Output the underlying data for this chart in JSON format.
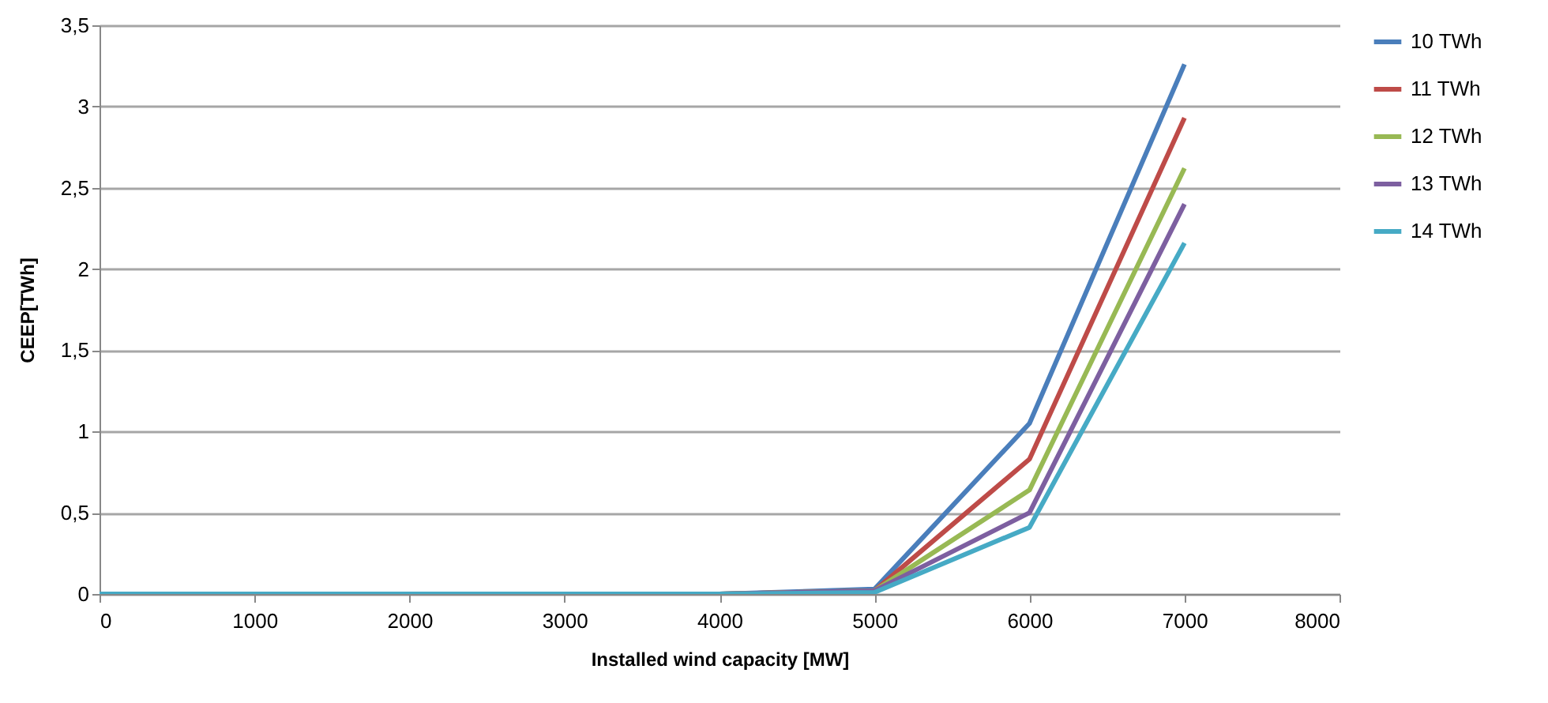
{
  "chart_data": {
    "type": "line",
    "xlabel": "Installed wind capacity  [MW]",
    "ylabel": "CEEP[TWh]",
    "x": [
      0,
      1000,
      2000,
      3000,
      4000,
      5000,
      6000,
      7000
    ],
    "series": [
      {
        "name": "10 TWh",
        "color": "#4a7ebb",
        "values": [
          null,
          null,
          null,
          null,
          0,
          0.03,
          1.05,
          3.26
        ]
      },
      {
        "name": "11 TWh",
        "color": "#be4b48",
        "values": [
          null,
          null,
          null,
          null,
          0,
          0.02,
          0.83,
          2.93
        ]
      },
      {
        "name": "12 TWh",
        "color": "#98b954",
        "values": [
          null,
          null,
          null,
          null,
          0,
          0.02,
          0.64,
          2.62
        ]
      },
      {
        "name": "13 TWh",
        "color": "#7d5fa0",
        "values": [
          null,
          null,
          null,
          null,
          0,
          0.02,
          0.5,
          2.4
        ]
      },
      {
        "name": "14 TWh",
        "color": "#46aac5",
        "values": [
          0,
          0,
          0,
          0,
          0,
          0.01,
          0.41,
          2.16
        ]
      }
    ],
    "xlim": [
      0,
      8000
    ],
    "xticks": [
      0,
      1000,
      2000,
      3000,
      4000,
      5000,
      6000,
      7000,
      8000
    ],
    "ylim": [
      0,
      3.5
    ],
    "yticks": [
      0,
      {
        "value": 0.5,
        "label": "0,5"
      },
      1,
      {
        "value": 1.5,
        "label": "1,5"
      },
      2,
      {
        "value": 2.5,
        "label": "2,5"
      },
      3,
      {
        "value": 3.5,
        "label": "3,5"
      }
    ],
    "grid": "y",
    "legend": "right",
    "marker": "none",
    "line_style": "solid"
  }
}
